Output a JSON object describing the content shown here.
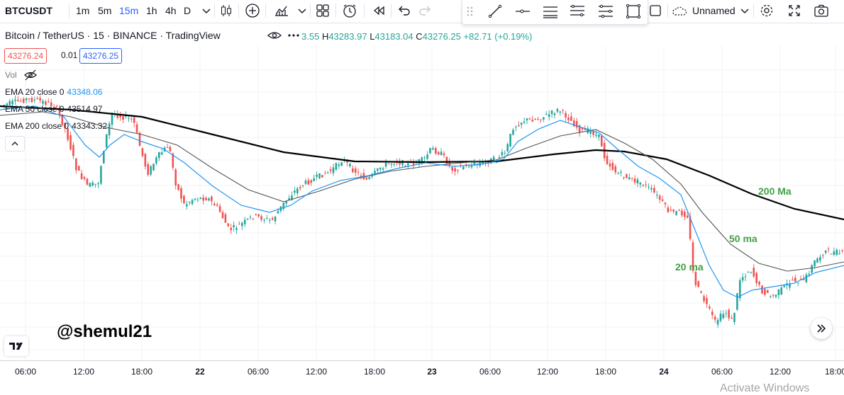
{
  "toolbar": {
    "symbol": "BTCUSDT",
    "timeframes": [
      {
        "label": "1m",
        "active": false
      },
      {
        "label": "5m",
        "active": false
      },
      {
        "label": "15m",
        "active": true
      },
      {
        "label": "1h",
        "active": false
      },
      {
        "label": "4h",
        "active": false
      },
      {
        "label": "D",
        "active": false
      }
    ],
    "layout_name": "Unnamed"
  },
  "legend": {
    "title": "Bitcoin / TetherUS · 15 · BINANCE · TradingView",
    "ohlc_prefix": "3.55",
    "high_label": "H",
    "high": "43283.97",
    "low_label": "L",
    "low": "43183.04",
    "close_label": "C",
    "close": "43276.25",
    "change": "+82.71 (+0.19%)",
    "bid": "43276.24",
    "spread": "0.01",
    "ask": "43276.25",
    "volume_label": "Vol",
    "indicators": [
      {
        "label": "EMA 20 close 0",
        "value": "43348.06",
        "color": "#2196f3"
      },
      {
        "label": "EMA 50 close 0",
        "value": "43514.97",
        "color": "#131722"
      },
      {
        "label": "EMA 200 close 0",
        "value": "43343.32",
        "color": "#131722"
      }
    ]
  },
  "annotations": {
    "ma200": "200 Ma",
    "ma50": "50 ma",
    "ma20": "20 ma",
    "watermark": "@shemul21"
  },
  "time_axis": {
    "labels": [
      "06:00",
      "12:00",
      "18:00",
      "22",
      "06:00",
      "12:00",
      "18:00",
      "23",
      "06:00",
      "12:00",
      "18:00",
      "24",
      "06:00",
      "12:00",
      "18:00"
    ]
  },
  "os_overlay": "Activate Windows",
  "chart_data": {
    "type": "line",
    "series": [
      {
        "name": "EMA 20",
        "color": "#2196f3"
      },
      {
        "name": "EMA 50",
        "color": "#555555"
      },
      {
        "name": "EMA 200",
        "color": "#000000"
      }
    ],
    "candle_up_color": "#26a69a",
    "candle_down_color": "#ef5350"
  }
}
